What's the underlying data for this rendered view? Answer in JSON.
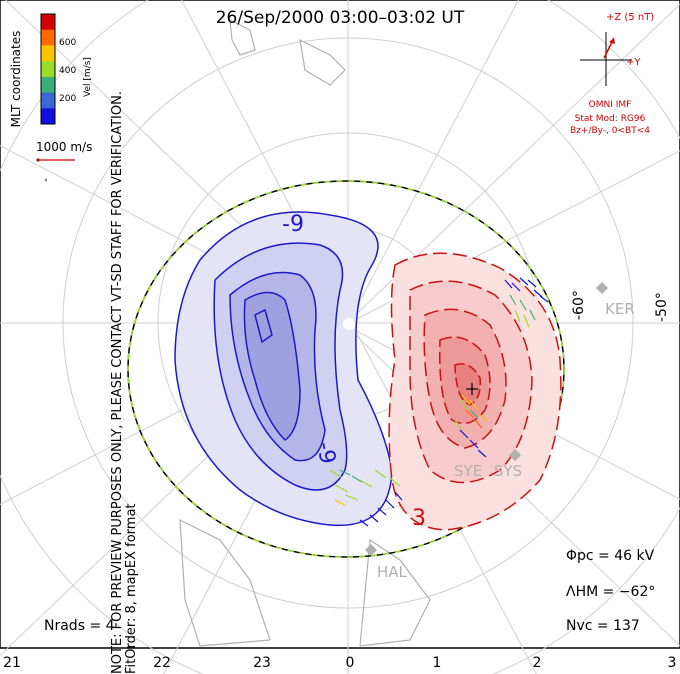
{
  "title": "26/Sep/2000 03:00–03:02 UT",
  "mlt_ticks": [
    "21",
    "22",
    "23",
    "0",
    "1",
    "2",
    "3"
  ],
  "side_note_line1": "NOTE: FOR PREVIEW PURPOSES ONLY, PLEASE CONTACT VT-SD STAFF FOR VERIFICATION.",
  "side_note_line2": "FitOrder: 8, mapEX format",
  "mlt_coords": "MLT coordinates",
  "legend": {
    "unit_label": "Vel [m/s]",
    "ticks": [
      "600",
      "400",
      "200"
    ],
    "colors": [
      "#d40000",
      "#ff6a00",
      "#ffc400",
      "#9ade2a",
      "#3cae7a",
      "#3a6ad4",
      "#1010e0"
    ],
    "scale_label": "1000 m/s"
  },
  "imf": {
    "z_label": "+Z (5 nT)",
    "y_label": "+Y",
    "source": "OMNI IMF",
    "model_line1": "Stat Mod: RG96",
    "model_line2": "Bz+/By-, 0<BT<4"
  },
  "contour_labels": {
    "neg1": "-9",
    "neg2": "-9",
    "pos": "3"
  },
  "latitude_labels": [
    "-60°",
    "-50°"
  ],
  "radars": [
    "KER",
    "SYE",
    "SYS",
    "HAL"
  ],
  "stats": {
    "phi_pc": "Φpc = 46 kV",
    "lambda_hm": "ΛHM = −62°",
    "n_vc": "Nvc = 137",
    "n_rads": "Nrads = 4"
  },
  "colors": {
    "neg_fill": "#5b5bd6",
    "pos_fill": "#e56060",
    "neg_line": "#1a1acc",
    "pos_line": "#cc1010",
    "grid": "#cccccc"
  }
}
